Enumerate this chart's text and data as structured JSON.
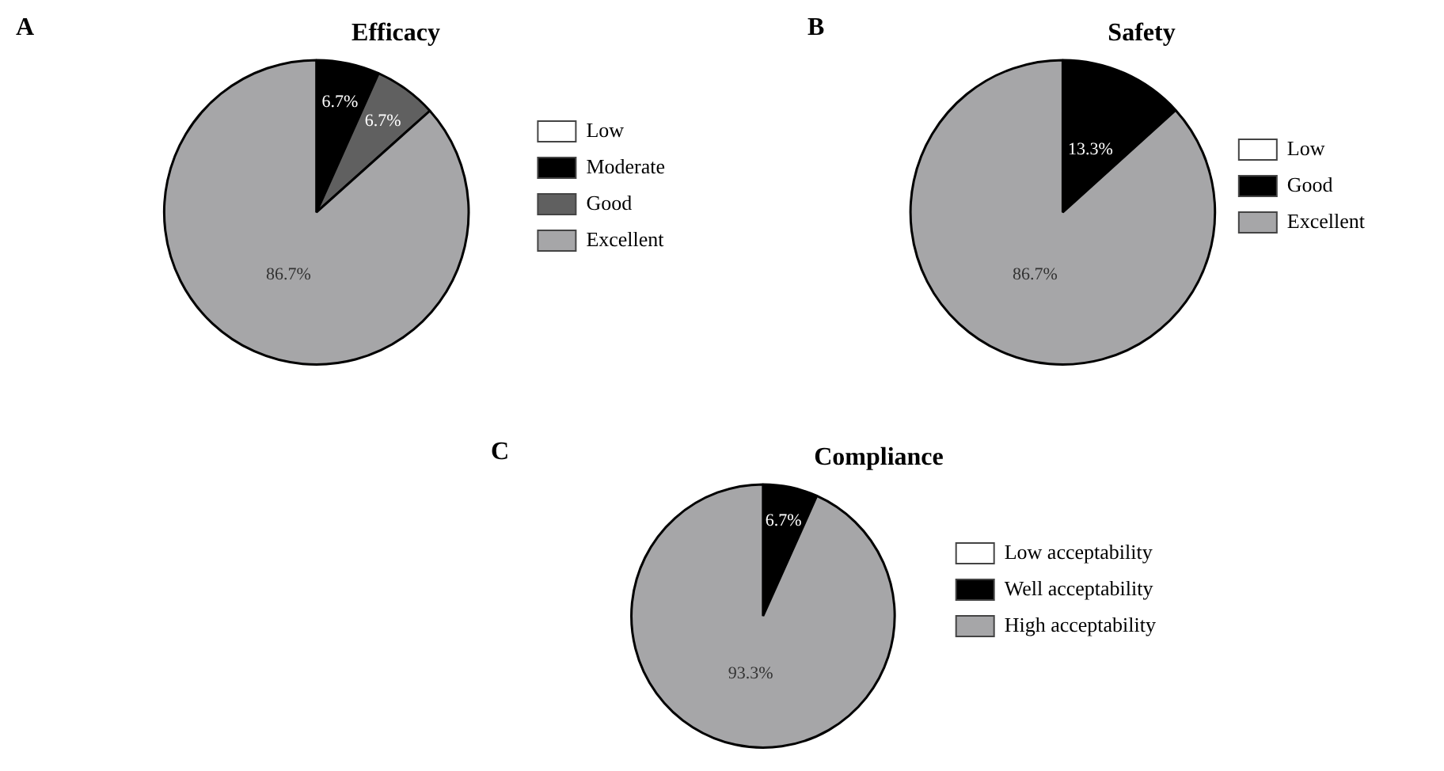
{
  "chart_data": [
    {
      "type": "pie",
      "title": "Efficacy",
      "annotations": [
        "A"
      ],
      "categories": [
        "Low",
        "Moderate",
        "Good",
        "Excellent"
      ],
      "values": [
        0,
        6.7,
        6.7,
        86.7
      ],
      "colors": [
        "#ffffff",
        "#000000",
        "#606060",
        "#a6a6a8"
      ],
      "value_labels": [
        null,
        "6.7%",
        "6.7%",
        "86.7%"
      ],
      "legend": "right"
    },
    {
      "type": "pie",
      "title": "Safety",
      "annotations": [
        "B"
      ],
      "categories": [
        "Low",
        "Good",
        "Excellent"
      ],
      "values": [
        0,
        13.3,
        86.7
      ],
      "colors": [
        "#ffffff",
        "#000000",
        "#a6a6a8"
      ],
      "value_labels": [
        null,
        "13.3%",
        "86.7%"
      ],
      "legend": "right"
    },
    {
      "type": "pie",
      "title": "Compliance",
      "annotations": [
        "C"
      ],
      "categories": [
        "Low acceptability",
        "Well acceptability",
        "High acceptability"
      ],
      "values": [
        0,
        6.7,
        93.3
      ],
      "colors": [
        "#ffffff",
        "#000000",
        "#a6a6a8"
      ],
      "value_labels": [
        null,
        "6.7%",
        "93.3%"
      ],
      "legend": "right"
    }
  ]
}
